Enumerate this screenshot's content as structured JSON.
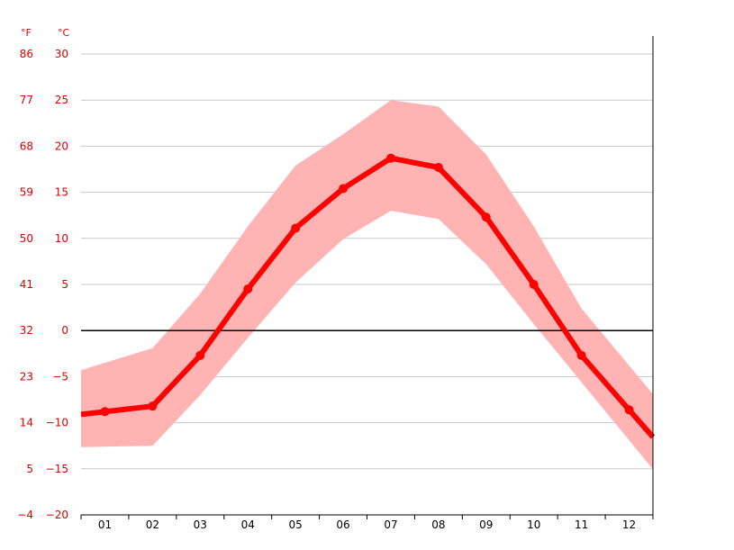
{
  "chart_data": {
    "type": "line",
    "title": "",
    "xlabel": "",
    "ylabel": "",
    "units": {
      "fahrenheit": "°F",
      "celsius": "°C"
    },
    "categories": [
      "01",
      "02",
      "03",
      "04",
      "05",
      "06",
      "07",
      "08",
      "09",
      "10",
      "11",
      "12"
    ],
    "ylim": [
      -20,
      30
    ],
    "celsius_ticks": [
      "30",
      "25",
      "20",
      "15",
      "10",
      "5",
      "0",
      "−5",
      "−10",
      "−15",
      "−20"
    ],
    "celsius_tick_values": [
      30,
      25,
      20,
      15,
      10,
      5,
      0,
      -5,
      -10,
      -15,
      -20
    ],
    "fahrenheit_ticks": [
      "86",
      "77",
      "68",
      "59",
      "50",
      "41",
      "32",
      "23",
      "14",
      "5",
      "−4"
    ],
    "grid": true,
    "series": [
      {
        "values": [
          -8.8,
          -8.2,
          -2.7,
          4.5,
          11.1,
          15.4,
          18.7,
          17.7,
          12.3,
          5.0,
          -2.7,
          -8.6
        ]
      },
      {
        "values": [
          -12.6,
          -12.5,
          -7.0,
          -0.8,
          5.2,
          9.9,
          13.0,
          12.1,
          7.2,
          0.7,
          -5.6,
          -11.9
        ]
      },
      {
        "values": [
          -3.5,
          -1.9,
          4.0,
          11.3,
          17.9,
          21.3,
          25.0,
          24.3,
          19.1,
          11.3,
          2.4,
          -3.8
        ]
      }
    ],
    "colors": {
      "mean_line": "#ff0000",
      "range_band": "#ffb3b3",
      "zero_line": "#000000",
      "grid": "#c8c8c8",
      "tick_red": "#e00000"
    }
  }
}
